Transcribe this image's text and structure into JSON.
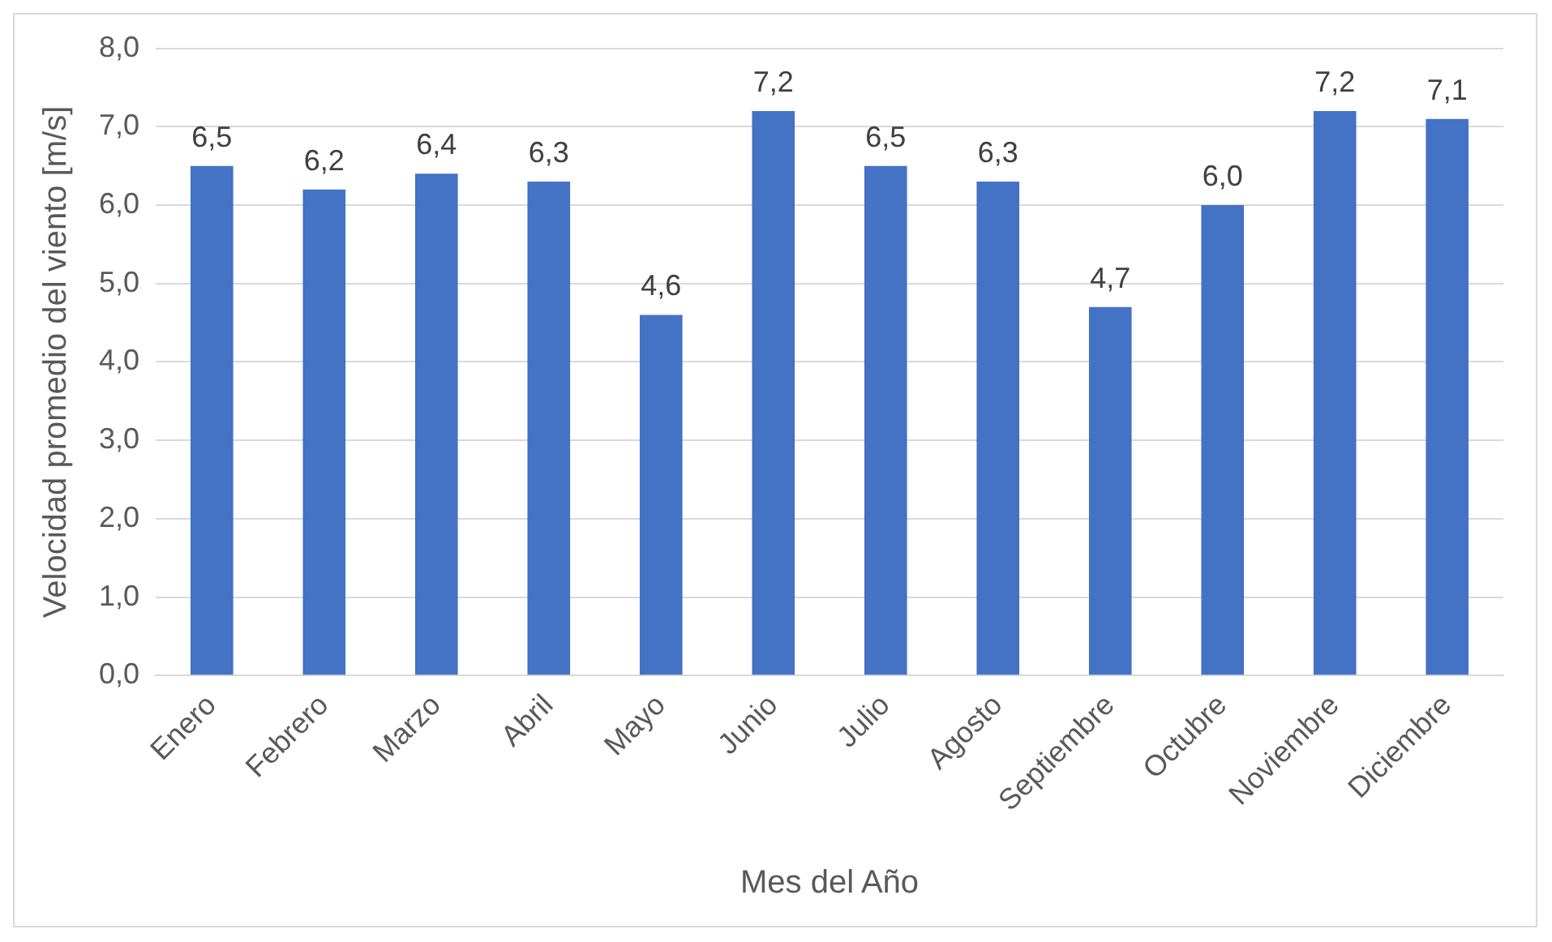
{
  "chart_data": {
    "type": "bar",
    "xlabel": "Mes del Año",
    "ylabel": "Velocidad promedio del viento [m/s]",
    "categories": [
      "Enero",
      "Febrero",
      "Marzo",
      "Abril",
      "Mayo",
      "Junio",
      "Julio",
      "Agosto",
      "Septiembre",
      "Octubre",
      "Noviembre",
      "Diciembre"
    ],
    "values": [
      6.5,
      6.2,
      6.4,
      6.3,
      4.6,
      7.2,
      6.5,
      6.3,
      4.7,
      6.0,
      7.2,
      7.1
    ],
    "color": "#4472c4",
    "value_labels": [
      "6,5",
      "6,2",
      "6,4",
      "6,3",
      "4,6",
      "7,2",
      "6,5",
      "6,3",
      "4,7",
      "6,0",
      "7,2",
      "7,1"
    ],
    "ylim": [
      0,
      8
    ],
    "yticks": [
      {
        "value": 0,
        "label": "0,0"
      },
      {
        "value": 1,
        "label": "1,0"
      },
      {
        "value": 2,
        "label": "2,0"
      },
      {
        "value": 3,
        "label": "3,0"
      },
      {
        "value": 4,
        "label": "4,0"
      },
      {
        "value": 5,
        "label": "5,0"
      },
      {
        "value": 6,
        "label": "6,0"
      },
      {
        "value": 7,
        "label": "7,0"
      },
      {
        "value": 8,
        "label": "8,0"
      }
    ],
    "grid": "y",
    "legend": false
  }
}
